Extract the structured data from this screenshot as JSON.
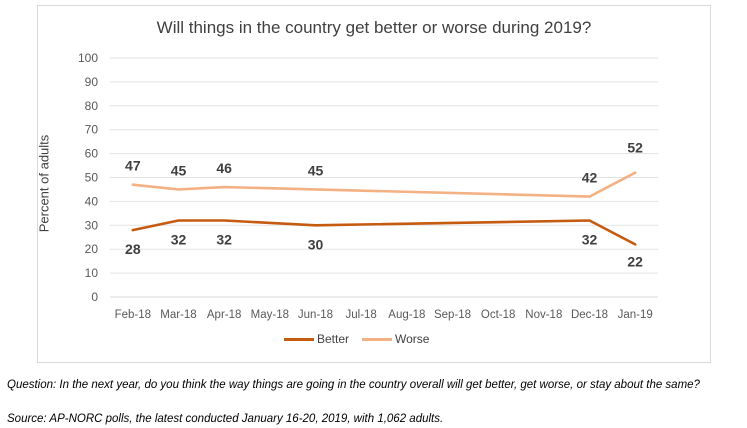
{
  "chart_data": {
    "type": "line",
    "title": "Will things in the country get better or worse during 2019?",
    "ylabel": "Percent of adults",
    "xlabel": "",
    "ylim": [
      0,
      100
    ],
    "yticks": [
      "0",
      "10",
      "20",
      "30",
      "40",
      "50",
      "60",
      "70",
      "80",
      "90",
      "100"
    ],
    "grid": true,
    "legend_position": "bottom",
    "categories": [
      "Feb-18",
      "Mar-18",
      "Apr-18",
      "May-18",
      "Jun-18",
      "Jul-18",
      "Aug-18",
      "Sep-18",
      "Oct-18",
      "Nov-18",
      "Dec-18",
      "Jan-19"
    ],
    "series": [
      {
        "name": "Better",
        "color": "#c55a11",
        "values": [
          28,
          32,
          32,
          null,
          30,
          null,
          null,
          null,
          null,
          null,
          32,
          22
        ],
        "labels": [
          "28",
          "32",
          "32",
          "",
          "30",
          "",
          "",
          "",
          "",
          "",
          "32",
          "22"
        ]
      },
      {
        "name": "Worse",
        "color": "#f4b183",
        "values": [
          47,
          45,
          46,
          null,
          45,
          null,
          null,
          null,
          null,
          null,
          42,
          52
        ],
        "labels": [
          "47",
          "45",
          "46",
          "",
          "45",
          "",
          "",
          "",
          "",
          "",
          "42",
          "52"
        ]
      }
    ]
  },
  "footnotes": {
    "question": "Question: In the next year, do you think the way things are going in the country overall will get better, get worse, or stay about the same?",
    "source": "Source: AP-NORC polls, the latest conducted January 16-20, 2019, with 1,062 adults."
  }
}
